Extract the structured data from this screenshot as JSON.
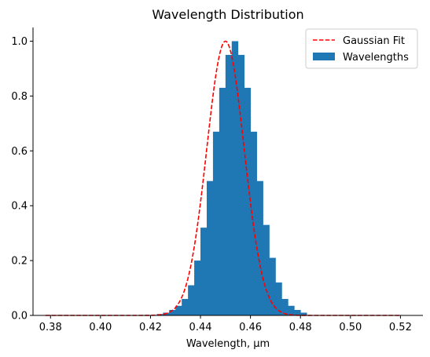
{
  "chart_data": {
    "type": "bar",
    "title": "Wavelength Distribution",
    "xlabel": "Wavelength, μm",
    "ylabel": "",
    "xlim": [
      0.373,
      0.529
    ],
    "ylim": [
      0,
      1.05
    ],
    "x_ticks": [
      0.38,
      0.4,
      0.42,
      0.44,
      0.46,
      0.48,
      0.5,
      0.52
    ],
    "x_tick_labels": [
      "0.38",
      "0.40",
      "0.42",
      "0.44",
      "0.46",
      "0.48",
      "0.50",
      "0.52"
    ],
    "y_ticks": [
      0.0,
      0.2,
      0.4,
      0.6,
      0.8,
      1.0
    ],
    "y_tick_labels": [
      "0.0",
      "0.2",
      "0.4",
      "0.6",
      "0.8",
      "1.0"
    ],
    "grid": false,
    "legend_position": "top-right",
    "series": [
      {
        "name": "Gaussian Fit",
        "kind": "line",
        "style": "dashed",
        "color": "#ff0000",
        "center": 0.45,
        "sigma": 0.0075,
        "amplitude": 1.0,
        "x_range": [
          0.378,
          0.52
        ]
      },
      {
        "name": "Wavelengths",
        "kind": "histogram",
        "color": "#1f77b4",
        "bin_width": 0.0025,
        "bin_edges_start": 0.4225,
        "values": [
          0.005,
          0.01,
          0.02,
          0.035,
          0.06,
          0.11,
          0.2,
          0.32,
          0.49,
          0.67,
          0.83,
          0.95,
          1.0,
          0.95,
          0.83,
          0.67,
          0.49,
          0.33,
          0.21,
          0.12,
          0.06,
          0.035,
          0.02,
          0.01
        ]
      }
    ]
  }
}
